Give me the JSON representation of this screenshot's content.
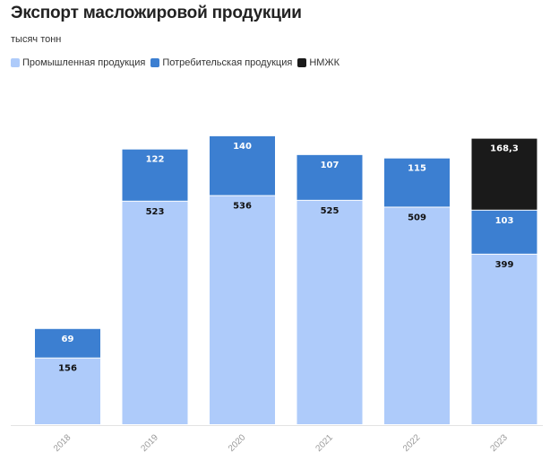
{
  "chart_data": {
    "type": "bar",
    "stacked": true,
    "title": "Экспорт масложировой продукции",
    "subtitle": "тысяч тонн",
    "legend_position": "top-left",
    "grid": false,
    "categories": [
      "2018",
      "2019",
      "2020",
      "2021",
      "2022",
      "2023"
    ],
    "ylim": [
      0,
      700
    ],
    "series": [
      {
        "name": "Промышленная продукция",
        "color": "#aecbfa",
        "label_color": "#111111",
        "values": [
          156,
          523,
          536,
          525,
          509,
          399
        ]
      },
      {
        "name": "Потребительская продукция",
        "color": "#3c7fd1",
        "label_color": "#ffffff",
        "values": [
          69,
          122,
          140,
          107,
          115,
          103
        ]
      },
      {
        "name": "НМЖК",
        "color": "#1a1a1a",
        "label_color": "#ffffff",
        "values": [
          null,
          null,
          null,
          null,
          null,
          168.3
        ]
      }
    ],
    "data_labels": [
      [
        "156",
        "523",
        "536",
        "525",
        "509",
        "399"
      ],
      [
        "69",
        "122",
        "140",
        "107",
        "115",
        "103"
      ],
      [
        "",
        "",
        "",
        "",
        "",
        "168,3"
      ]
    ]
  }
}
